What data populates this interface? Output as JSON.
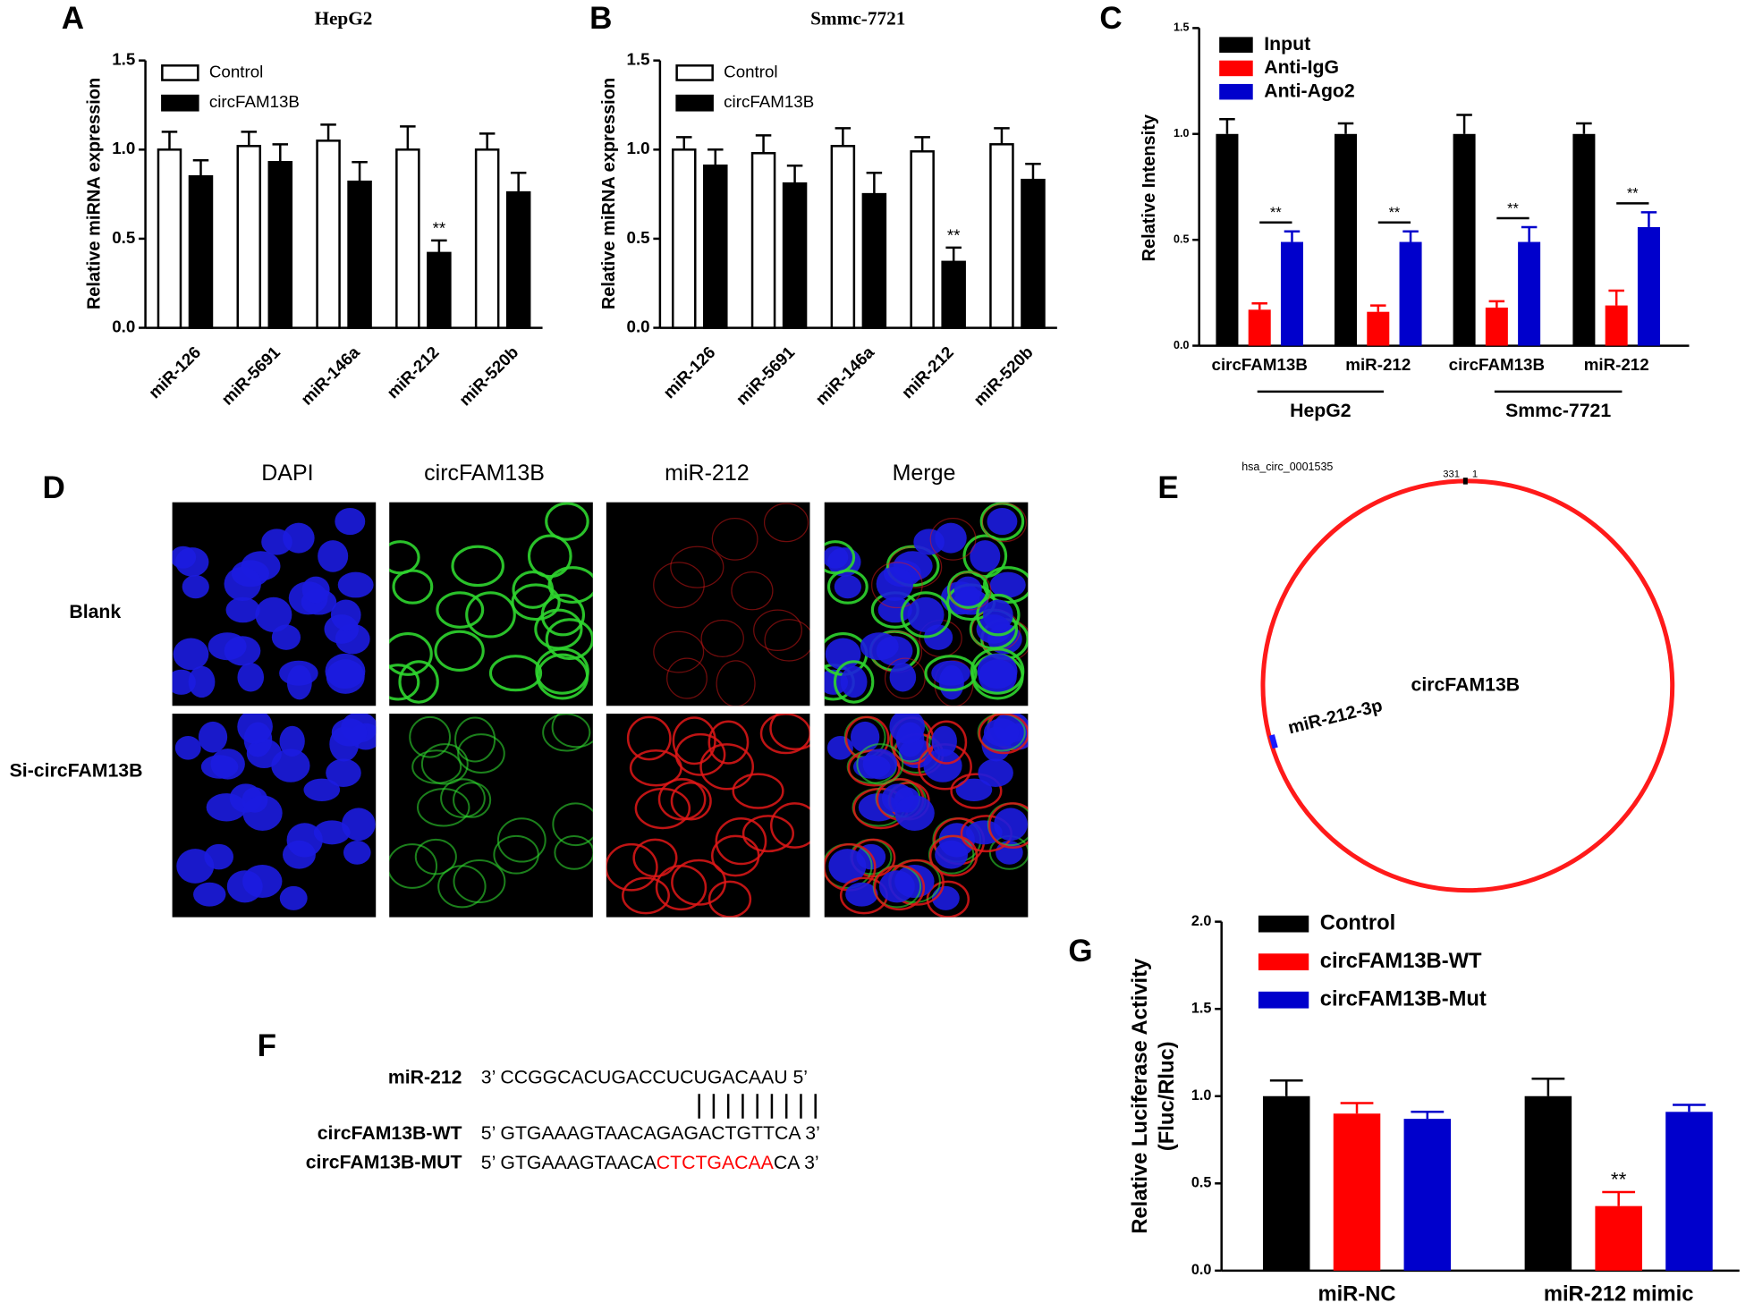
{
  "chart_data": [
    {
      "type": "bar",
      "panel": "A",
      "title": "HepG2",
      "y_label": "Relative miRNA expression",
      "categories": [
        "miR-126",
        "miR-5691",
        "miR-146a",
        "miR-212",
        "miR-520b"
      ],
      "series": [
        {
          "name": "Control",
          "color": "#ffffff",
          "values": [
            1.0,
            1.02,
            1.05,
            1.0,
            1.0
          ],
          "errors": [
            0.1,
            0.08,
            0.09,
            0.13,
            0.09
          ]
        },
        {
          "name": "circFAM13B",
          "color": "#000000",
          "values": [
            0.85,
            0.93,
            0.82,
            0.42,
            0.76
          ],
          "errors": [
            0.09,
            0.1,
            0.11,
            0.07,
            0.11
          ]
        }
      ],
      "bar_outline": "#000000",
      "ylim": [
        0,
        1.5
      ],
      "yticks": [
        {
          "value": 0,
          "label": "0.0"
        },
        0.5,
        {
          "value": 1,
          "label": "1.0"
        },
        1.5
      ],
      "annotations": [
        {
          "text": "**",
          "series": 1,
          "index": 3
        }
      ]
    },
    {
      "type": "bar",
      "panel": "B",
      "title": "Smmc-7721",
      "y_label": "Relative miRNA expression",
      "categories": [
        "miR-126",
        "miR-5691",
        "miR-146a",
        "miR-212",
        "miR-520b"
      ],
      "series": [
        {
          "name": "Control",
          "color": "#ffffff",
          "values": [
            1.0,
            0.98,
            1.02,
            0.99,
            1.03
          ],
          "errors": [
            0.07,
            0.1,
            0.1,
            0.08,
            0.09
          ]
        },
        {
          "name": "circFAM13B",
          "color": "#000000",
          "values": [
            0.91,
            0.81,
            0.75,
            0.37,
            0.83
          ],
          "errors": [
            0.09,
            0.1,
            0.12,
            0.08,
            0.09
          ]
        }
      ],
      "bar_outline": "#000000",
      "ylim": [
        0,
        1.5
      ],
      "yticks": [
        {
          "value": 0,
          "label": "0.0"
        },
        0.5,
        {
          "value": 1,
          "label": "1.0"
        },
        1.5
      ],
      "annotations": [
        {
          "text": "**",
          "series": 1,
          "index": 3
        }
      ]
    },
    {
      "type": "bar",
      "panel": "C",
      "y_label": "Relative Intensity",
      "categories": [
        "circFAM13B",
        "miR-212",
        "circFAM13B",
        "miR-212"
      ],
      "groups": [
        {
          "name": "HepG2",
          "span": [
            0,
            1
          ]
        },
        {
          "name": "Smmc-7721",
          "span": [
            2,
            3
          ]
        }
      ],
      "series": [
        {
          "name": "Input",
          "color": "#000000",
          "values": [
            1.0,
            1.0,
            1.0,
            1.0
          ],
          "errors": [
            0.07,
            0.05,
            0.09,
            0.05
          ]
        },
        {
          "name": "Anti-IgG",
          "color": "#ff0000",
          "values": [
            0.17,
            0.16,
            0.18,
            0.19
          ],
          "errors": [
            0.03,
            0.03,
            0.03,
            0.07
          ]
        },
        {
          "name": "Anti-Ago2",
          "color": "#0000cc",
          "values": [
            0.49,
            0.49,
            0.49,
            0.56
          ],
          "errors": [
            0.05,
            0.05,
            0.07,
            0.07
          ]
        }
      ],
      "ylim": [
        0,
        1.5
      ],
      "yticks": [
        {
          "value": 0,
          "label": "0.0"
        },
        0.5,
        {
          "value": 1,
          "label": "1.0"
        },
        1.5
      ],
      "annotations": [
        {
          "text": "**",
          "series": 2,
          "index": 0
        },
        {
          "text": "**",
          "series": 2,
          "index": 1
        },
        {
          "text": "**",
          "series": 2,
          "index": 2
        },
        {
          "text": "**",
          "series": 2,
          "index": 3
        }
      ]
    },
    {
      "type": "bar",
      "panel": "G",
      "y_label": [
        "Relative Luciferase Activity",
        "(Fluc/Rluc)"
      ],
      "categories": [
        "miR-NC",
        "miR-212 mimic"
      ],
      "series": [
        {
          "name": "Control",
          "color": "#000000",
          "values": [
            1.0,
            1.0
          ],
          "errors": [
            0.09,
            0.1
          ]
        },
        {
          "name": "circFAM13B-WT",
          "color": "#ff0000",
          "values": [
            0.9,
            0.37
          ],
          "errors": [
            0.06,
            0.08
          ]
        },
        {
          "name": "circFAM13B-Mut",
          "color": "#0000cc",
          "values": [
            0.87,
            0.91
          ],
          "errors": [
            0.04,
            0.04
          ]
        }
      ],
      "ylim": [
        0,
        2
      ],
      "yticks": [
        {
          "value": 0,
          "label": "0.0"
        },
        0.5,
        {
          "value": 1,
          "label": "1.0"
        },
        1.5,
        {
          "value": 2,
          "label": "2.0"
        }
      ],
      "annotations": [
        {
          "text": "**",
          "series": 1,
          "index": 1
        }
      ]
    }
  ],
  "panel_d": {
    "panel": "D",
    "columns": [
      "DAPI",
      "circFAM13B",
      "miR-212",
      "Merge"
    ],
    "rows": [
      "Blank",
      "Si-circFAM13B"
    ]
  },
  "panel_e": {
    "panel": "E",
    "id": "hsa_circ_0001535",
    "start": "331",
    "end": "1",
    "center_label": "circFAM13B",
    "site_label": "miR-212-3p"
  },
  "panel_f": {
    "panel": "F",
    "rows": [
      {
        "label": "miR-212",
        "sequence": "3’ CCGGCACUGACCUCUGACAAU 5’"
      },
      {
        "label": "circFAM13B-WT",
        "sequence": "5’ GTGAAAGTAACAGAGACTGTTCA 3’"
      },
      {
        "label": "circFAM13B-MUT",
        "sequence_parts": [
          "5’ GTGAAAGTAACA",
          "CTCTGACAA",
          "CA 3’"
        ]
      }
    ]
  }
}
